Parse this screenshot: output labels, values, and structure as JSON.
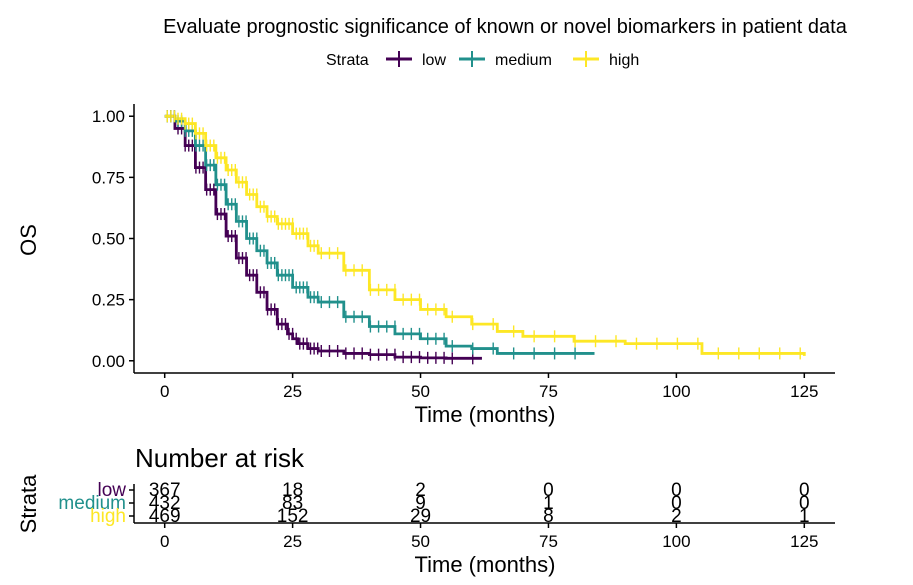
{
  "chart_data": {
    "type": "line",
    "title": "Evaluate prognostic significance of known or novel biomarkers in patient data",
    "legend": {
      "title": "Strata",
      "position": "top",
      "entries": [
        "low",
        "medium",
        "high"
      ]
    },
    "xlabel": "Time (months)",
    "ylabel": "OS",
    "xlim": [
      -6,
      131
    ],
    "ylim": [
      -0.05,
      1.05
    ],
    "xticks": [
      0,
      25,
      50,
      75,
      100,
      125
    ],
    "xtick_labels": [
      "0",
      "25",
      "50",
      "75",
      "100",
      "125"
    ],
    "yticks": [
      0,
      0.25,
      0.5,
      0.75,
      1.0
    ],
    "ytick_labels": [
      "0.00",
      "0.25",
      "0.50",
      "0.75",
      "1.00"
    ],
    "series": [
      {
        "name": "low",
        "color": "#440154",
        "x": [
          0,
          2,
          4,
          6,
          8,
          10,
          12,
          14,
          16,
          18,
          20,
          22,
          24,
          25,
          26,
          28,
          30,
          35,
          40,
          45,
          50,
          55,
          62
        ],
        "y": [
          1.0,
          0.95,
          0.88,
          0.79,
          0.7,
          0.6,
          0.51,
          0.42,
          0.35,
          0.28,
          0.21,
          0.15,
          0.11,
          0.09,
          0.07,
          0.05,
          0.04,
          0.03,
          0.025,
          0.015,
          0.012,
          0.01,
          0.01
        ]
      },
      {
        "name": "medium",
        "color": "#21908C",
        "x": [
          0,
          2,
          4,
          6,
          8,
          10,
          12,
          14,
          16,
          18,
          20,
          22,
          25,
          28,
          30,
          35,
          40,
          45,
          50,
          55,
          60,
          65,
          70,
          75,
          80,
          84
        ],
        "y": [
          1.0,
          0.98,
          0.94,
          0.88,
          0.8,
          0.72,
          0.64,
          0.57,
          0.5,
          0.45,
          0.4,
          0.35,
          0.3,
          0.26,
          0.24,
          0.18,
          0.14,
          0.11,
          0.09,
          0.06,
          0.05,
          0.03,
          0.03,
          0.03,
          0.03,
          0.03
        ]
      },
      {
        "name": "high",
        "color": "#FDE725",
        "x": [
          0,
          2,
          4,
          6,
          8,
          10,
          12,
          14,
          16,
          18,
          20,
          22,
          25,
          28,
          30,
          35,
          40,
          45,
          50,
          55,
          60,
          65,
          70,
          80,
          90,
          100,
          105,
          110,
          120,
          125
        ],
        "y": [
          1.0,
          0.99,
          0.97,
          0.93,
          0.88,
          0.83,
          0.78,
          0.73,
          0.68,
          0.63,
          0.59,
          0.56,
          0.52,
          0.47,
          0.44,
          0.37,
          0.29,
          0.25,
          0.21,
          0.18,
          0.15,
          0.12,
          0.1,
          0.08,
          0.07,
          0.07,
          0.03,
          0.03,
          0.03,
          0.02
        ]
      }
    ],
    "risk_table": {
      "title": "Number at risk",
      "ylabel": "Strata",
      "xlabel": "Time (months)",
      "times": [
        0,
        25,
        50,
        75,
        100,
        125
      ],
      "rows": [
        {
          "name": "low",
          "color": "#440154",
          "values": [
            "367",
            "18",
            "2",
            "0",
            "0",
            "0"
          ]
        },
        {
          "name": "medium",
          "color": "#21908C",
          "values": [
            "432",
            "83",
            "9",
            "1",
            "0",
            "0"
          ]
        },
        {
          "name": "high",
          "color": "#FDE725",
          "values": [
            "469",
            "152",
            "29",
            "8",
            "2",
            "1"
          ]
        }
      ]
    }
  }
}
